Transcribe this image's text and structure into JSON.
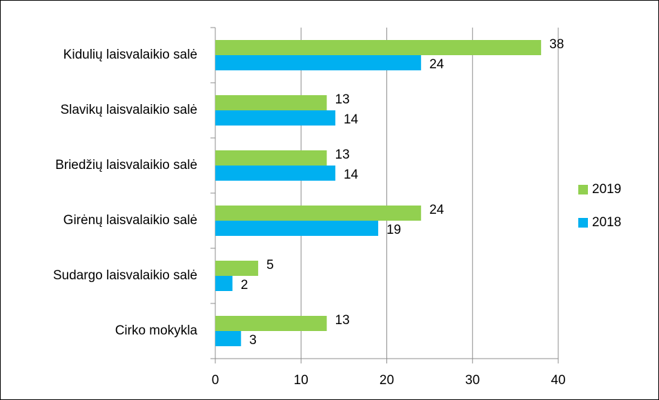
{
  "chart_data": {
    "type": "bar",
    "orientation": "horizontal",
    "categories": [
      "Kidulių laisvalaikio salė",
      "Slavikų laisvalaikio salė",
      "Briedžių laisvalaikio salė",
      "Girėnų laisvalaikio salė",
      "Sudargo laisvalaikio salė",
      "Cirko mokykla"
    ],
    "series": [
      {
        "name": "2019",
        "color": "#92d050",
        "values": [
          38,
          13,
          13,
          24,
          5,
          13
        ]
      },
      {
        "name": "2018",
        "color": "#00b0f0",
        "values": [
          24,
          14,
          14,
          19,
          2,
          3
        ]
      }
    ],
    "xlim": [
      0,
      40
    ],
    "xticks": [
      0,
      10,
      20,
      30,
      40
    ],
    "grid": true,
    "legend": "right"
  }
}
